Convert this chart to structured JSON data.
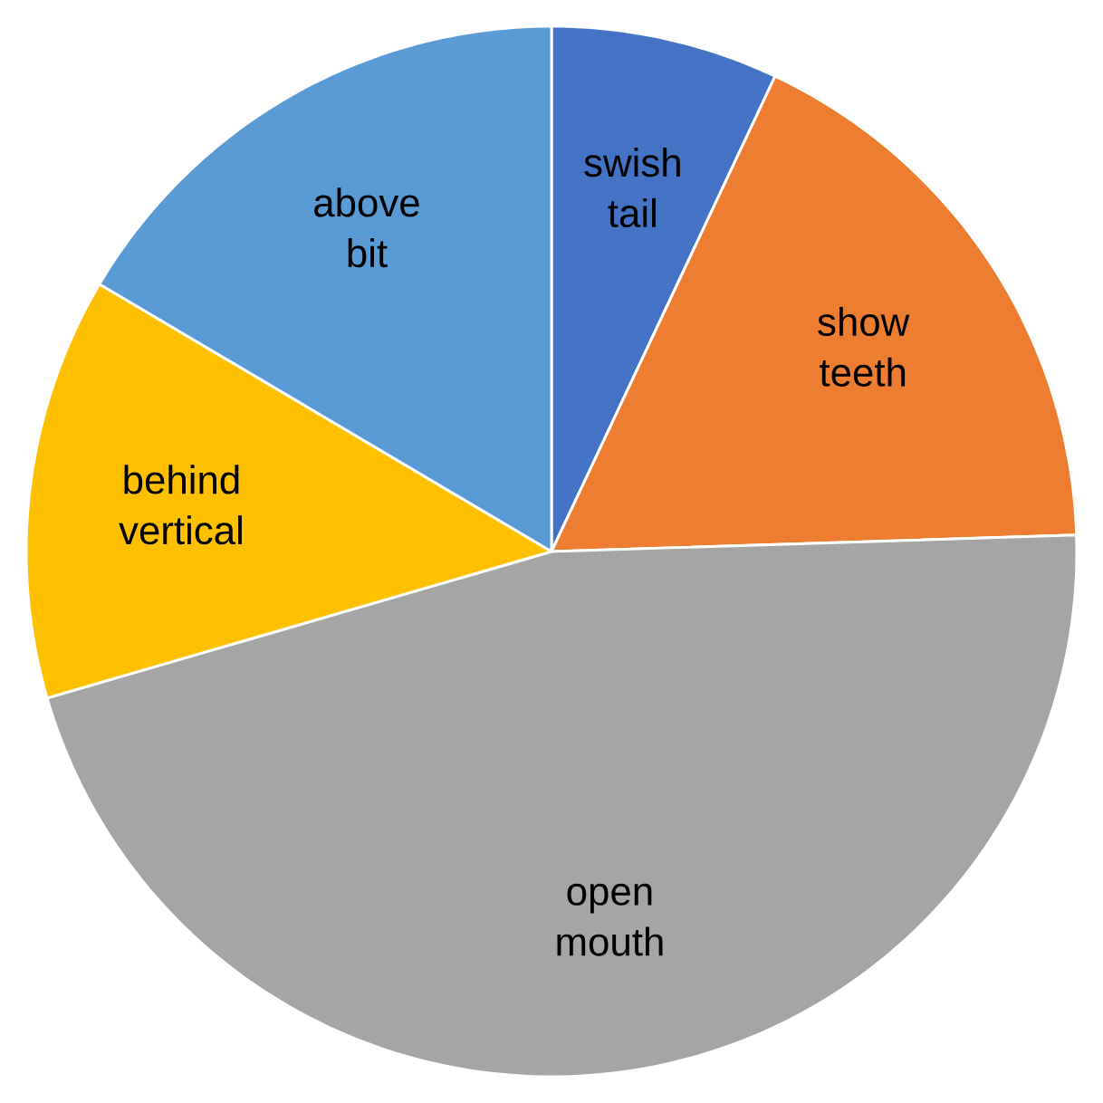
{
  "chart_data": {
    "type": "pie",
    "categories": [
      "swish tail",
      "show teeth",
      "open mouth",
      "behind vertical",
      "above bit"
    ],
    "values": [
      7,
      17.5,
      46,
      13,
      16.5
    ],
    "colors": [
      "#4472c4",
      "#ed7d31",
      "#a5a5a5",
      "#ffc000",
      "#5b9bd5"
    ]
  }
}
